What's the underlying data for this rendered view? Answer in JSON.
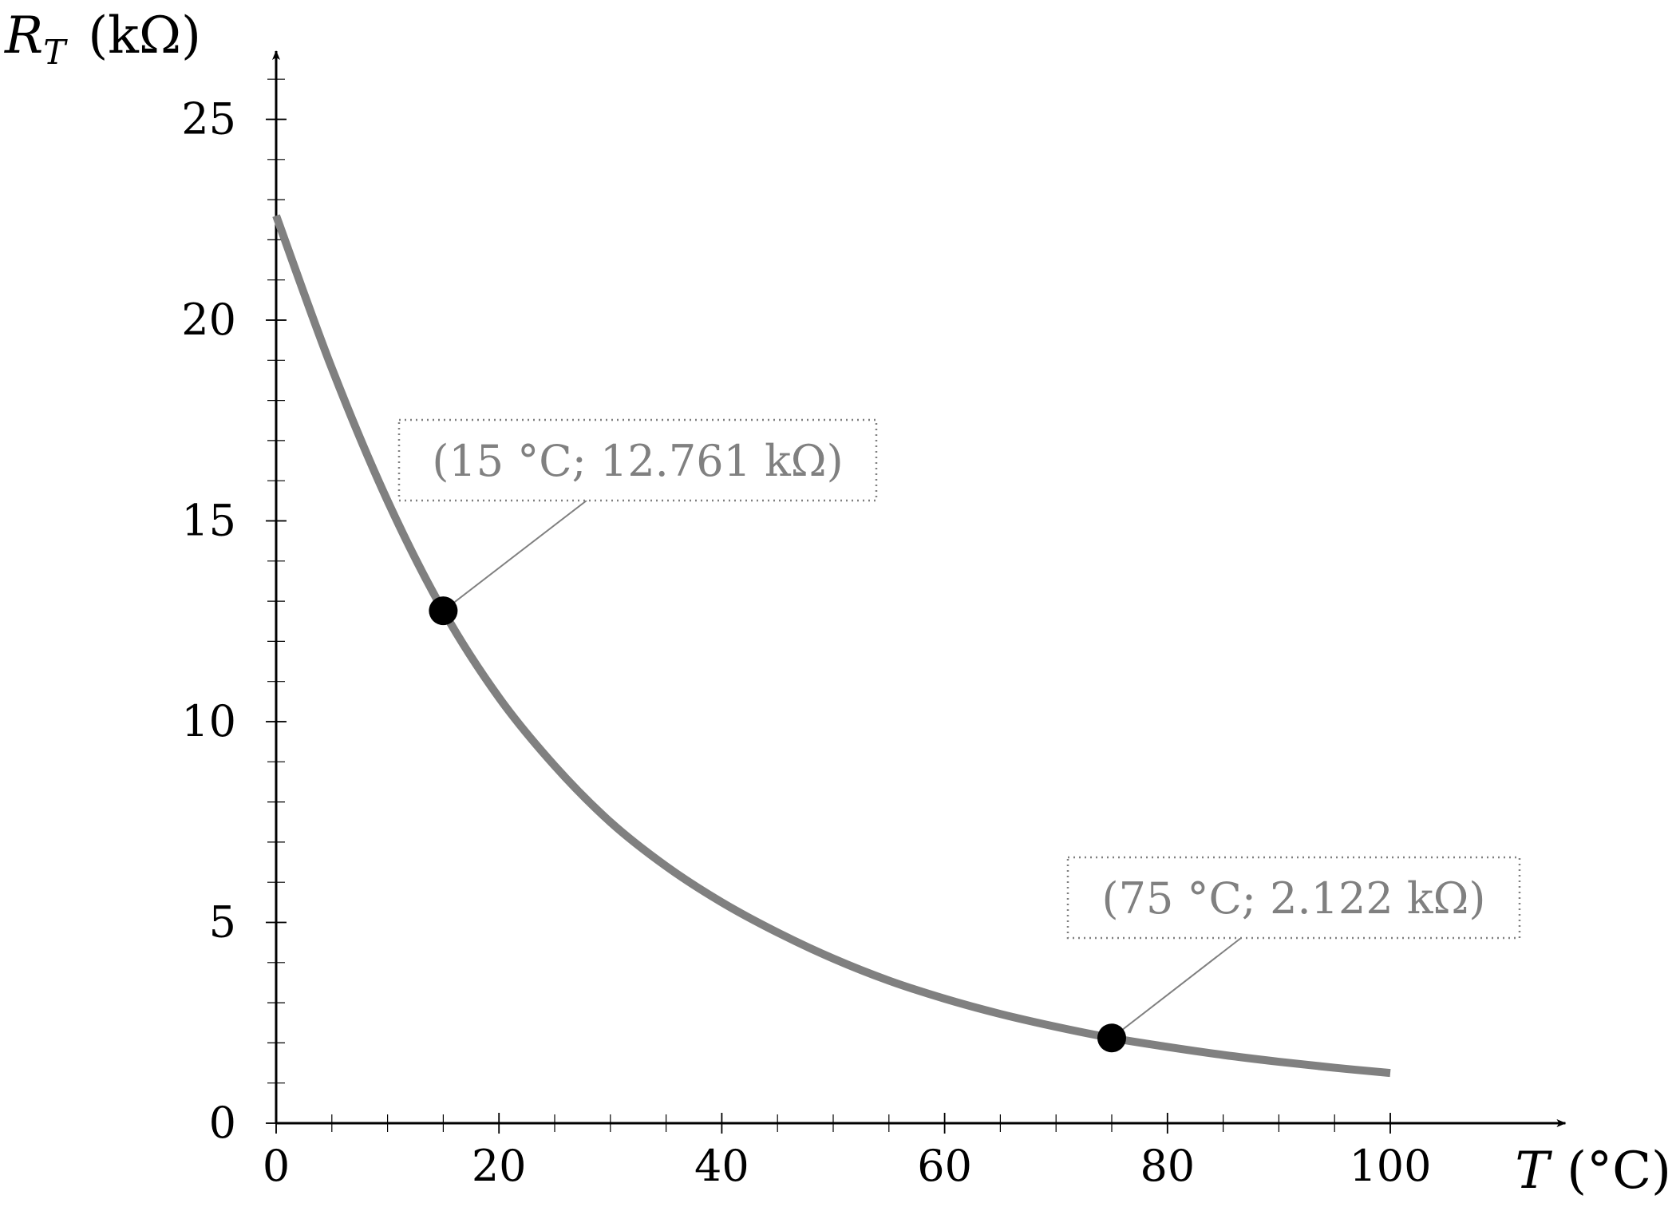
{
  "chart_data": {
    "type": "line",
    "title": "",
    "xlabel": {
      "symbol": "T",
      "unit": "(°C)"
    },
    "ylabel": {
      "symbol": "R",
      "subscript": "T",
      "unit": "(kΩ)"
    },
    "xlim": [
      0,
      115
    ],
    "ylim": [
      0,
      26.5
    ],
    "x_ticks": [
      {
        "value": 0,
        "label": "0"
      },
      {
        "value": 20,
        "label": "20"
      },
      {
        "value": 40,
        "label": "40"
      },
      {
        "value": 60,
        "label": "60"
      },
      {
        "value": 80,
        "label": "80"
      },
      {
        "value": 100,
        "label": "100"
      }
    ],
    "x_minor_step": 5,
    "y_ticks": [
      {
        "value": 0,
        "label": "0"
      },
      {
        "value": 5,
        "label": "5"
      },
      {
        "value": 10,
        "label": "10"
      },
      {
        "value": 15,
        "label": "15"
      },
      {
        "value": 20,
        "label": "20"
      },
      {
        "value": 25,
        "label": "25"
      }
    ],
    "y_minor_step": 1,
    "grid": false,
    "series": [
      {
        "color": "#808080",
        "x": [
          0,
          5,
          10,
          15,
          20,
          25,
          30,
          35,
          40,
          45,
          50,
          55,
          60,
          65,
          70,
          75,
          80,
          85,
          90,
          95,
          100
        ],
        "y": [
          22.6,
          18.8,
          15.5,
          12.761,
          10.6,
          8.9,
          7.5,
          6.4,
          5.5,
          4.75,
          4.1,
          3.55,
          3.1,
          2.72,
          2.4,
          2.122,
          1.9,
          1.7,
          1.53,
          1.38,
          1.25
        ]
      }
    ],
    "highlighted_points": [
      {
        "x": 15,
        "y": 12.761,
        "label": "(15 °C; 12.761 kΩ)"
      },
      {
        "x": 75,
        "y": 2.122,
        "label": "(75 °C; 2.122 kΩ)"
      }
    ]
  }
}
